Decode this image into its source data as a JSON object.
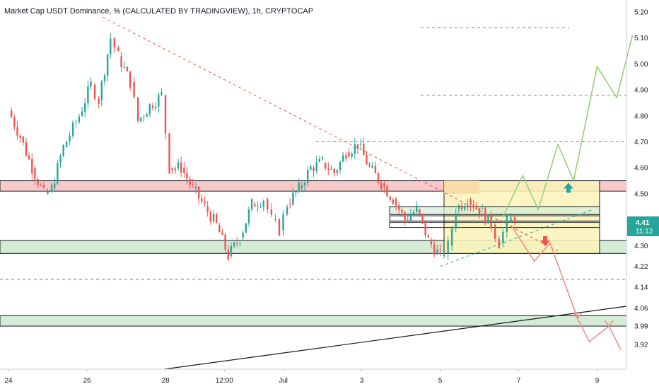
{
  "title": "Market Cap USDT Dominance, % (CALCULATED BY TRADINGVIEW), 1h, CRYPTOCAP",
  "colors": {
    "up": "#26a69a",
    "down": "#ef5350",
    "projection_up": "#8fce74",
    "projection_down": "#f08a80",
    "resistance_zone": "#f7c9c9",
    "support_zone": "#d4ecd6",
    "box_fill": "#fbf3b8",
    "box_orange": "#fbd9a6",
    "badge": "#26a69a"
  },
  "price_badge": {
    "price": "4.41",
    "countdown": "11:12"
  },
  "chart_data": {
    "type": "candlestick",
    "title": "Market Cap USDT Dominance, % (CALCULATED BY TRADINGVIEW), 1h, CRYPTOCAP",
    "x_axis": {
      "range": [
        23.7,
        9.8
      ],
      "range_days": [
        23.7,
        39.8
      ],
      "ticks": [
        {
          "label": "24",
          "day": 24
        },
        {
          "label": "26",
          "day": 26
        },
        {
          "label": "28",
          "day": 28
        },
        {
          "label": "12:00",
          "day": 29.5
        },
        {
          "label": "Jul",
          "day": 31
        },
        {
          "label": "3",
          "day": 33
        },
        {
          "label": "5",
          "day": 35
        },
        {
          "label": "7",
          "day": 37
        },
        {
          "label": "9",
          "day": 39
        }
      ]
    },
    "y_axis": {
      "range": [
        3.92,
        5.23
      ],
      "ticks": [
        "5.20",
        "5.10",
        "5.00",
        "4.90",
        "4.80",
        "4.70",
        "4.60",
        "4.50",
        "4.41",
        "4.30",
        "4.22",
        "4.14",
        "4.06",
        "3.99",
        "3.92"
      ]
    },
    "price_path": [
      [
        24.0,
        4.82
      ],
      [
        24.3,
        4.72
      ],
      [
        24.6,
        4.6
      ],
      [
        24.9,
        4.5
      ],
      [
        25.1,
        4.52
      ],
      [
        25.4,
        4.68
      ],
      [
        25.8,
        4.8
      ],
      [
        26.1,
        4.92
      ],
      [
        26.3,
        4.86
      ],
      [
        26.6,
        5.1
      ],
      [
        26.8,
        5.03
      ],
      [
        27.1,
        4.93
      ],
      [
        27.3,
        4.78
      ],
      [
        27.6,
        4.84
      ],
      [
        27.9,
        4.88
      ],
      [
        28.1,
        4.6
      ],
      [
        28.4,
        4.6
      ],
      [
        28.7,
        4.52
      ],
      [
        29.0,
        4.45
      ],
      [
        29.3,
        4.38
      ],
      [
        29.6,
        4.26
      ],
      [
        29.9,
        4.33
      ],
      [
        30.2,
        4.46
      ],
      [
        30.5,
        4.48
      ],
      [
        30.7,
        4.4
      ],
      [
        30.9,
        4.36
      ],
      [
        31.1,
        4.46
      ],
      [
        31.4,
        4.52
      ],
      [
        31.7,
        4.6
      ],
      [
        32.0,
        4.62
      ],
      [
        32.3,
        4.58
      ],
      [
        32.6,
        4.66
      ],
      [
        32.9,
        4.69
      ],
      [
        33.2,
        4.6
      ],
      [
        33.5,
        4.54
      ],
      [
        33.8,
        4.48
      ],
      [
        34.1,
        4.4
      ],
      [
        34.4,
        4.44
      ],
      [
        34.7,
        4.32
      ],
      [
        35.0,
        4.26
      ],
      [
        35.2,
        4.3
      ],
      [
        35.4,
        4.44
      ],
      [
        35.7,
        4.48
      ],
      [
        36.0,
        4.44
      ],
      [
        36.3,
        4.38
      ],
      [
        36.5,
        4.31
      ],
      [
        36.7,
        4.39
      ],
      [
        36.9,
        4.41
      ]
    ],
    "zones": [
      {
        "type": "resistance",
        "from": 4.51,
        "to": 4.55
      },
      {
        "type": "support",
        "from": 4.27,
        "to": 4.32
      },
      {
        "type": "support",
        "from": 3.99,
        "to": 4.03
      }
    ],
    "horizontal_levels": [
      {
        "value": 5.14,
        "style": "dashed-red"
      },
      {
        "value": 4.88,
        "style": "dashed-red"
      },
      {
        "value": 4.7,
        "style": "dashed-red"
      },
      {
        "value": 4.17,
        "style": "dashed-green"
      }
    ],
    "projections": [
      {
        "direction": "up",
        "path": [
          [
            36.6,
            4.41
          ],
          [
            37.1,
            4.57
          ],
          [
            37.5,
            4.44
          ],
          [
            38.0,
            4.69
          ],
          [
            38.4,
            4.55
          ],
          [
            39.0,
            4.99
          ],
          [
            39.5,
            4.87
          ],
          [
            39.9,
            5.11
          ]
        ]
      },
      {
        "direction": "down",
        "path": [
          [
            36.8,
            4.38
          ],
          [
            37.4,
            4.24
          ],
          [
            37.8,
            4.31
          ],
          [
            38.5,
            4.02
          ],
          [
            38.8,
            3.93
          ],
          [
            39.3,
            3.99
          ],
          [
            39.6,
            3.9
          ]
        ]
      }
    ]
  }
}
